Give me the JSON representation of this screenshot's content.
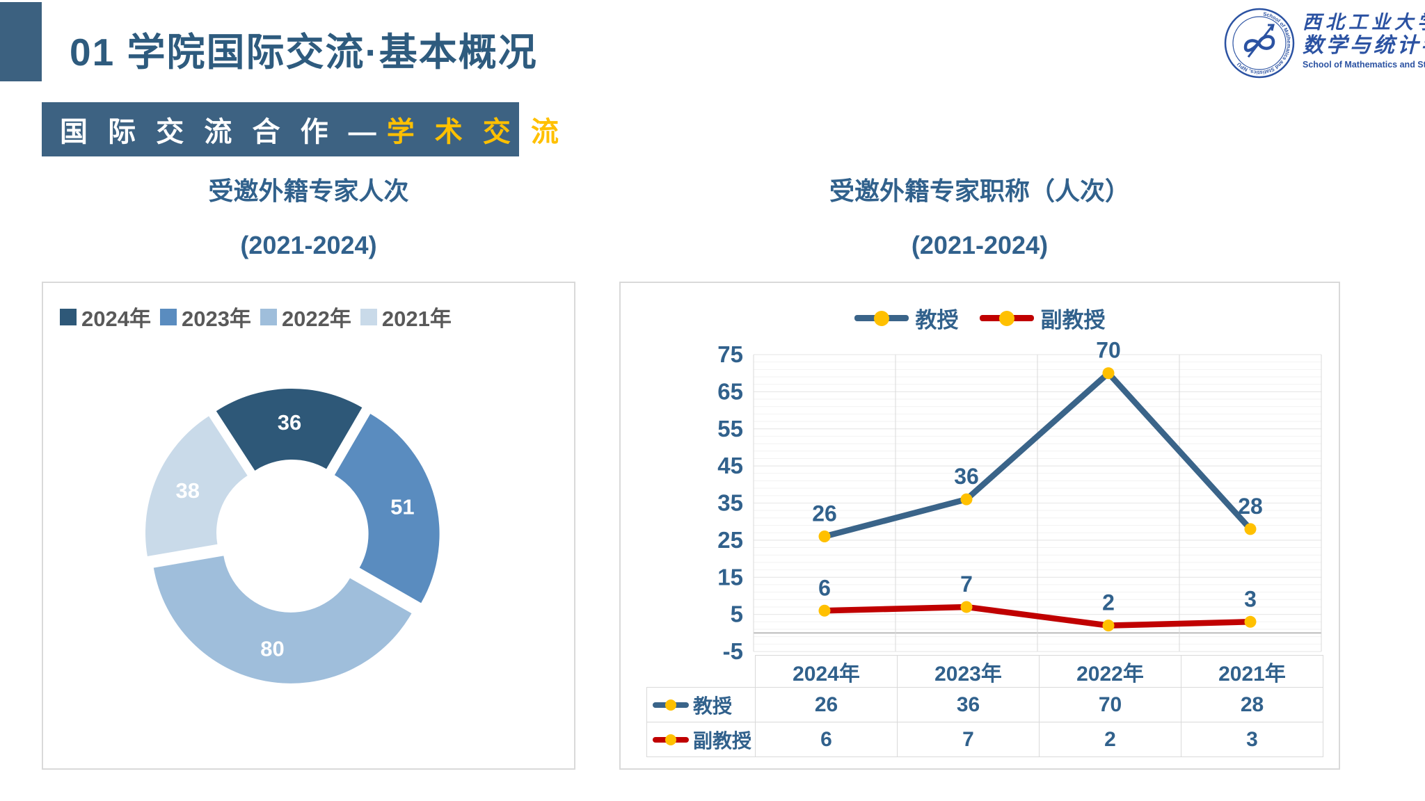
{
  "colors": {
    "accent_bar": "#3C6180",
    "banner_bg": "#3D6282",
    "title_text": "#2E5B7E",
    "gold": "#FFC000",
    "chart_text_blue": "#31618C",
    "legend_text_grey": "#595959",
    "logo_blue": "#2B52A2",
    "card_border": "#D9D9D9",
    "grid_minor": "#F2F2F2",
    "grid_major": "#E6E6E6",
    "axis_zero_line": "#AFAFAF"
  },
  "header": {
    "title": "01 学院国际交流·基本概况"
  },
  "banner": {
    "white": "国 际 交 流 合 作 —",
    "gold": "学 术 交 流"
  },
  "logo": {
    "seal_text": "School of Mathematics and Statistics, NPU",
    "cn_line1": "西北工业大学",
    "cn_line2": "数学与统计学院",
    "en_line": "School of Mathematics and Statistics, NPU"
  },
  "left_panel": {
    "title": "受邀外籍专家人次",
    "subtitle": "(2021-2024)"
  },
  "right_panel": {
    "title": "受邀外籍专家职称（人次）",
    "subtitle": "(2021-2024)"
  },
  "chart_data": [
    {
      "type": "pie",
      "subtype": "doughnut",
      "title": "受邀外籍专家人次 (2021-2024)",
      "categories": [
        "2024年",
        "2023年",
        "2022年",
        "2021年"
      ],
      "values": [
        36,
        51,
        80,
        38
      ],
      "colors": [
        "#2E5878",
        "#5A8CBF",
        "#9FBEDB",
        "#C9DAE9"
      ],
      "label_color": "#FFFFFF",
      "start_angle_deg": -33,
      "hole_ratio": 0.49,
      "legend_position": "top"
    },
    {
      "type": "line",
      "title": "受邀外籍专家职称（人次） (2021-2024)",
      "categories": [
        "2024年",
        "2023年",
        "2022年",
        "2021年"
      ],
      "series": [
        {
          "name": "教授",
          "values": [
            26,
            36,
            70,
            28
          ],
          "color": "#3A6489"
        },
        {
          "name": "副教授",
          "values": [
            6,
            7,
            2,
            3
          ],
          "color": "#C00000"
        }
      ],
      "marker_color": "#FFC000",
      "ylim": [
        -5,
        75
      ],
      "y_major_unit": 10,
      "y_minor_unit": 2,
      "grid": true,
      "legend_position": "top",
      "data_table_shown": true
    }
  ]
}
